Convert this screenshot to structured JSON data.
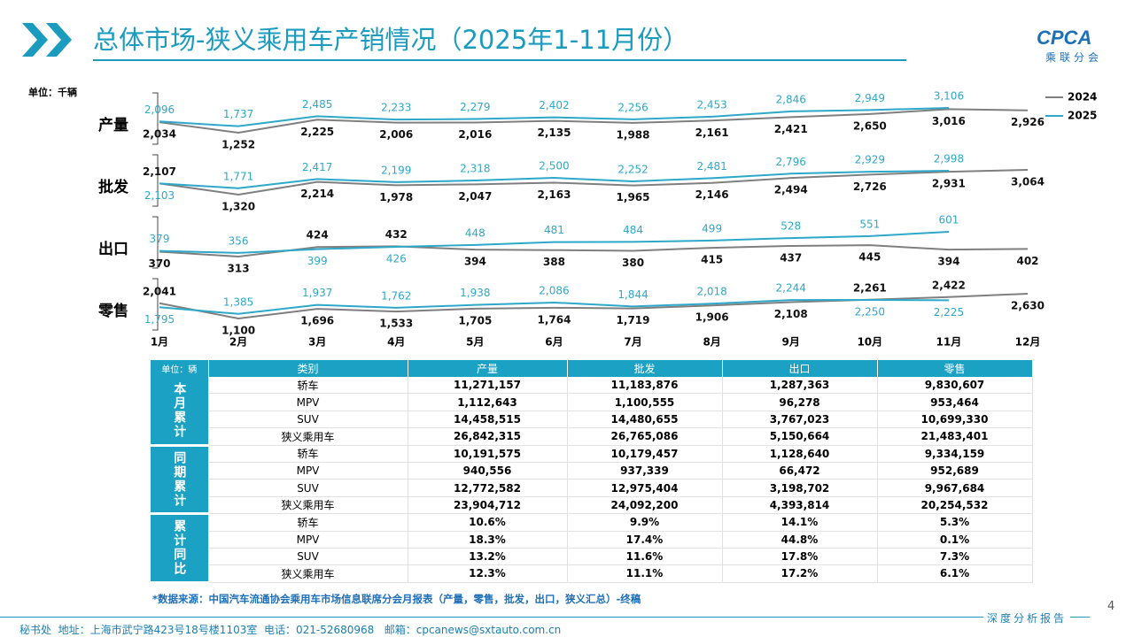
{
  "header": {
    "title": "总体市场-狭义乘用车产销情况（2025年1-11月份）",
    "logo": "CPCA",
    "logo_subtitle": "乘联分会"
  },
  "chart_data": {
    "type": "line",
    "unit": "单位：千辆",
    "legend_position": "right",
    "categories": [
      "1月",
      "2月",
      "3月",
      "4月",
      "5月",
      "6月",
      "7月",
      "8月",
      "9月",
      "10月",
      "11月",
      "12月"
    ],
    "panels": [
      "产量",
      "批发",
      "出口",
      "零售"
    ],
    "series": [
      {
        "name": "2024",
        "color": "#7f7f7f",
        "label_color": "#111111",
        "values": [
          [
            2034,
            1252,
            2225,
            2006,
            2016,
            2135,
            1988,
            2161,
            2421,
            2650,
            3016,
            2926
          ],
          [
            2107,
            1320,
            2214,
            1978,
            2047,
            2163,
            1965,
            2146,
            2494,
            2726,
            2931,
            3064
          ],
          [
            370,
            313,
            424,
            432,
            394,
            388,
            380,
            415,
            437,
            445,
            394,
            402
          ],
          [
            2041,
            1100,
            1696,
            1533,
            1705,
            1764,
            1719,
            1906,
            2108,
            2261,
            2422,
            2630
          ]
        ],
        "value_labels": [
          [
            "2,034",
            "1,252",
            "2,225",
            "2,006",
            "2,016",
            "2,135",
            "1,988",
            "2,161",
            "2,421",
            "2,650",
            "3,016",
            "2,926"
          ],
          [
            "2,107",
            "1,320",
            "2,214",
            "1,978",
            "2,047",
            "2,163",
            "1,965",
            "2,146",
            "2,494",
            "2,726",
            "2,931",
            "3,064"
          ],
          [
            "370",
            "313",
            "424",
            "432",
            "394",
            "388",
            "380",
            "415",
            "437",
            "445",
            "394",
            "402"
          ],
          [
            "2,041",
            "1,100",
            "1,696",
            "1,533",
            "1,705",
            "1,764",
            "1,719",
            "1,906",
            "2,108",
            "2,261",
            "2,422",
            "2,630"
          ]
        ]
      },
      {
        "name": "2025",
        "color": "#2ea8c8",
        "label_color": "#2ea8c8",
        "values": [
          [
            2096,
            1737,
            2485,
            2233,
            2279,
            2402,
            2256,
            2453,
            2846,
            2949,
            3106,
            null
          ],
          [
            2103,
            1771,
            2417,
            2199,
            2318,
            2500,
            2252,
            2481,
            2796,
            2929,
            2998,
            null
          ],
          [
            379,
            356,
            399,
            426,
            448,
            481,
            484,
            499,
            528,
            551,
            601,
            null
          ],
          [
            1795,
            1385,
            1937,
            1762,
            1938,
            2086,
            1844,
            2018,
            2244,
            2250,
            2225,
            null
          ]
        ],
        "value_labels": [
          [
            "2,096",
            "1,737",
            "2,485",
            "2,233",
            "2,279",
            "2,402",
            "2,256",
            "2,453",
            "2,846",
            "2,949",
            "3,106",
            null
          ],
          [
            "2,103",
            "1,771",
            "2,417",
            "2,199",
            "2,318",
            "2,500",
            "2,252",
            "2,481",
            "2,796",
            "2,929",
            "2,998",
            null
          ],
          [
            "379",
            "356",
            "399",
            "426",
            "448",
            "481",
            "484",
            "499",
            "528",
            "551",
            "601",
            null
          ],
          [
            "1,795",
            "1,385",
            "1,937",
            "1,762",
            "1,938",
            "2,086",
            "1,844",
            "2,018",
            "2,244",
            "2,250",
            "2,225",
            null
          ]
        ]
      }
    ]
  },
  "table": {
    "unit": "单位：辆",
    "columns": [
      "类别",
      "产量",
      "批发",
      "出口",
      "零售"
    ],
    "groups": [
      {
        "label": "本月累计",
        "rows": [
          [
            "轿车",
            "11,271,157",
            "11,183,876",
            "1,287,363",
            "9,830,607"
          ],
          [
            "MPV",
            "1,112,643",
            "1,100,555",
            "96,278",
            "953,464"
          ],
          [
            "SUV",
            "14,458,515",
            "14,480,655",
            "3,767,023",
            "10,699,330"
          ],
          [
            "狭义乘用车",
            "26,842,315",
            "26,765,086",
            "5,150,664",
            "21,483,401"
          ]
        ]
      },
      {
        "label": "同期累计",
        "rows": [
          [
            "轿车",
            "10,191,575",
            "10,179,457",
            "1,128,640",
            "9,334,159"
          ],
          [
            "MPV",
            "940,556",
            "937,339",
            "66,472",
            "952,689"
          ],
          [
            "SUV",
            "12,772,582",
            "12,975,404",
            "3,198,702",
            "9,967,684"
          ],
          [
            "狭义乘用车",
            "23,904,712",
            "24,092,200",
            "4,393,814",
            "20,254,532"
          ]
        ]
      },
      {
        "label": "累计同比",
        "rows": [
          [
            "轿车",
            "10.6%",
            "9.9%",
            "14.1%",
            "5.3%"
          ],
          [
            "MPV",
            "18.3%",
            "17.4%",
            "44.8%",
            "0.1%"
          ],
          [
            "SUV",
            "13.2%",
            "11.6%",
            "17.8%",
            "7.3%"
          ],
          [
            "狭义乘用车",
            "12.3%",
            "11.1%",
            "17.2%",
            "6.1%"
          ]
        ]
      }
    ]
  },
  "footer": {
    "source": "*数据来源：中国汽车流通协会乘用车市场信息联席分会月报表（产量，零售，批发，出口，狭义汇总）-终稿",
    "address": "秘书处  地址：上海市武宁路423号18号楼1103室  电话：021-52680968   邮箱：cpcanews@sxtauto.com.cn",
    "report": "深度分析报告",
    "page": "4"
  }
}
